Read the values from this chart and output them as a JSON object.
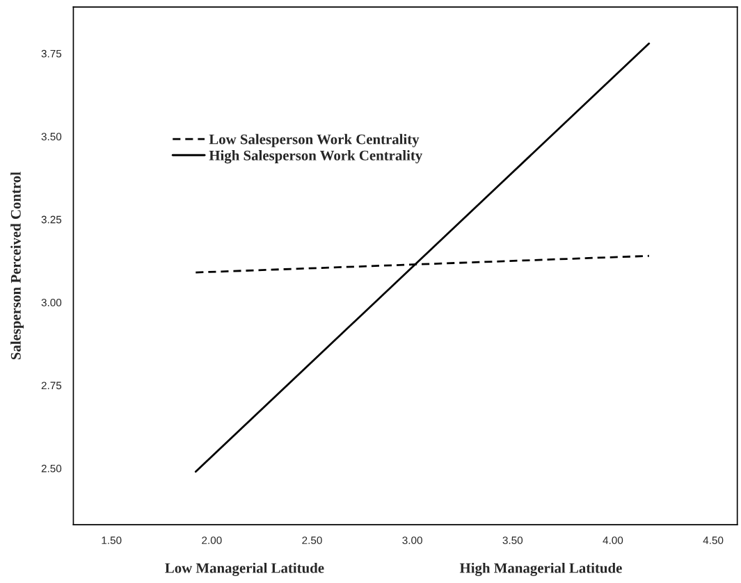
{
  "chart_data": {
    "type": "line",
    "ylabel": "Salesperson Perceived Control",
    "annotations": [
      "Low Managerial Latitude",
      "High Managerial Latitude"
    ],
    "x": [
      1.92,
      4.18
    ],
    "series": [
      {
        "name": "Low Salesperson Work Centrality",
        "color": "#000000",
        "values": [
          3.09,
          3.14
        ],
        "line_style": "dashed"
      },
      {
        "name": "High Salesperson Work Centrality",
        "color": "#000000",
        "values": [
          2.49,
          3.78
        ],
        "line_style": "solid"
      }
    ],
    "xlim": [
      1.31,
      4.62
    ],
    "ylim": [
      2.33,
      3.89
    ],
    "xticks": [
      {
        "value": 1.5,
        "label": "1.50"
      },
      {
        "value": 2.0,
        "label": "2.00"
      },
      {
        "value": 2.5,
        "label": "2.50"
      },
      {
        "value": 3.0,
        "label": "3.00"
      },
      {
        "value": 3.5,
        "label": "3.50"
      },
      {
        "value": 4.0,
        "label": "4.00"
      },
      {
        "value": 4.5,
        "label": "4.50"
      }
    ],
    "yticks": [
      {
        "value": 2.5,
        "label": "2.50"
      },
      {
        "value": 2.75,
        "label": "2.75"
      },
      {
        "value": 3.0,
        "label": "3.00"
      },
      {
        "value": 3.25,
        "label": "3.25"
      },
      {
        "value": 3.5,
        "label": "3.50"
      },
      {
        "value": 3.75,
        "label": "3.75"
      }
    ],
    "grid": false,
    "legend": "top left",
    "marker": "none"
  }
}
